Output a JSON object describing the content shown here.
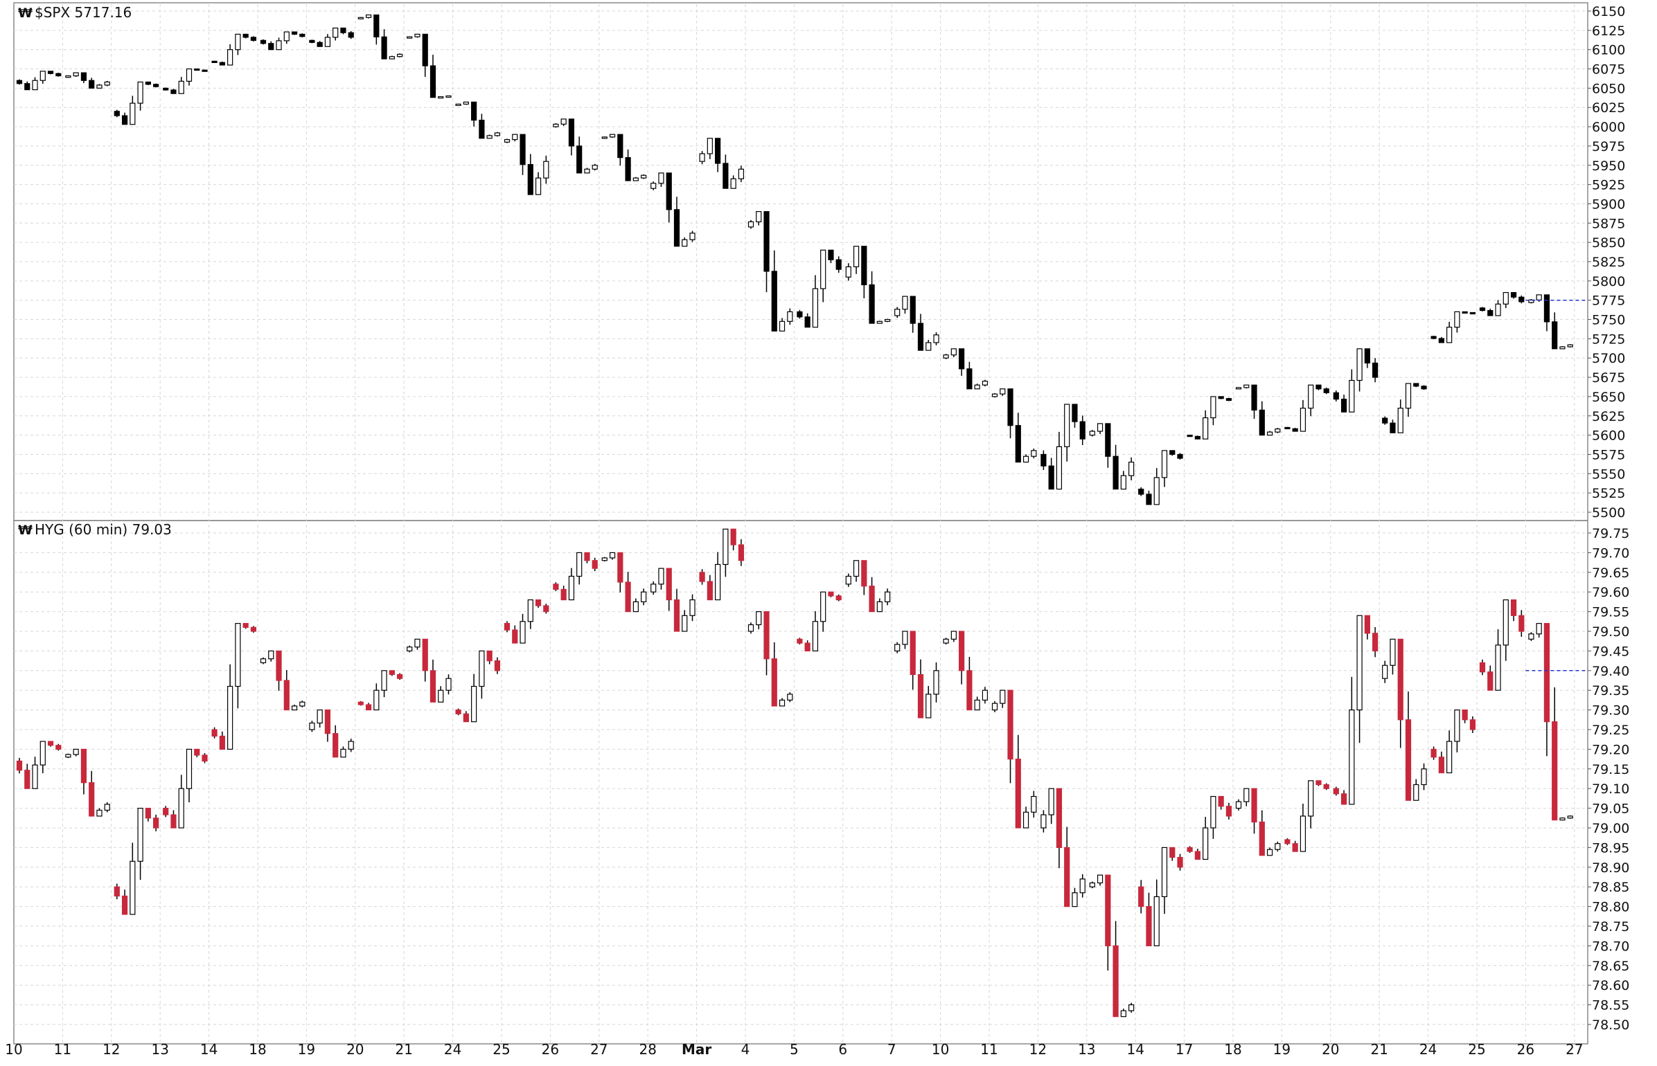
{
  "chart_data": [
    {
      "type": "candlestick",
      "symbol_icon": "chart-logo-icon",
      "title": "$SPX 5717.16",
      "last_value": 5717.16,
      "ylim": [
        5500,
        6150
      ],
      "y_ticks": [
        6150,
        6125,
        6100,
        6075,
        6050,
        6025,
        6000,
        5975,
        5950,
        5925,
        5900,
        5875,
        5850,
        5825,
        5800,
        5775,
        5750,
        5725,
        5700,
        5675,
        5650,
        5625,
        5600,
        5575,
        5550,
        5525,
        5500
      ],
      "up_color": "#ffffff",
      "down_color": "#000000",
      "wick_color": "#000000",
      "ref_line": {
        "value": 5775,
        "color": "#2233cc",
        "style": "dashed"
      },
      "grid": true,
      "days": [
        {
          "label": "10",
          "o": 6060,
          "h": 6072,
          "l": 6048,
          "c": 6066
        },
        {
          "label": "11",
          "o": 6064,
          "h": 6070,
          "l": 6050,
          "c": 6058
        },
        {
          "label": "12",
          "o": 6020,
          "h": 6058,
          "l": 6003,
          "c": 6052
        },
        {
          "label": "13",
          "o": 6050,
          "h": 6075,
          "l": 6043,
          "c": 6072
        },
        {
          "label": "14",
          "o": 6085,
          "h": 6120,
          "l": 6080,
          "c": 6112
        },
        {
          "label": "18",
          "o": 6112,
          "h": 6123,
          "l": 6100,
          "c": 6117
        },
        {
          "label": "19",
          "o": 6112,
          "h": 6128,
          "l": 6104,
          "c": 6116
        },
        {
          "label": "20",
          "o": 6140,
          "h": 6145,
          "l": 6088,
          "c": 6094
        },
        {
          "label": "21",
          "o": 6115,
          "h": 6120,
          "l": 6038,
          "c": 6040
        },
        {
          "label": "24",
          "o": 6028,
          "h": 6032,
          "l": 5985,
          "c": 5992
        },
        {
          "label": "25",
          "o": 5980,
          "h": 5990,
          "l": 5912,
          "c": 5955
        },
        {
          "label": "26",
          "o": 6000,
          "h": 6010,
          "l": 5940,
          "c": 5950
        },
        {
          "label": "27",
          "o": 5985,
          "h": 5990,
          "l": 5930,
          "c": 5937
        },
        {
          "label": "28",
          "o": 5920,
          "h": 5940,
          "l": 5845,
          "c": 5862
        },
        {
          "label": "Mar",
          "o": 5955,
          "h": 5985,
          "l": 5920,
          "c": 5945
        },
        {
          "label": "4",
          "o": 5870,
          "h": 5890,
          "l": 5735,
          "c": 5760
        },
        {
          "label": "5",
          "o": 5760,
          "h": 5840,
          "l": 5740,
          "c": 5815
        },
        {
          "label": "6",
          "o": 5805,
          "h": 5845,
          "l": 5745,
          "c": 5750
        },
        {
          "label": "7",
          "o": 5755,
          "h": 5780,
          "l": 5710,
          "c": 5730
        },
        {
          "label": "10",
          "o": 5700,
          "h": 5712,
          "l": 5660,
          "c": 5670
        },
        {
          "label": "11",
          "o": 5650,
          "h": 5660,
          "l": 5565,
          "c": 5580
        },
        {
          "label": "12",
          "o": 5575,
          "h": 5640,
          "l": 5530,
          "c": 5595
        },
        {
          "label": "13",
          "o": 5600,
          "h": 5615,
          "l": 5530,
          "c": 5565
        },
        {
          "label": "14",
          "o": 5530,
          "h": 5580,
          "l": 5510,
          "c": 5570
        },
        {
          "label": "17",
          "o": 5600,
          "h": 5650,
          "l": 5595,
          "c": 5645
        },
        {
          "label": "18",
          "o": 5660,
          "h": 5665,
          "l": 5600,
          "c": 5608
        },
        {
          "label": "19",
          "o": 5610,
          "h": 5665,
          "l": 5605,
          "c": 5655
        },
        {
          "label": "20",
          "o": 5655,
          "h": 5712,
          "l": 5630,
          "c": 5675
        },
        {
          "label": "21",
          "o": 5622,
          "h": 5667,
          "l": 5603,
          "c": 5660
        },
        {
          "label": "24",
          "o": 5728,
          "h": 5760,
          "l": 5720,
          "c": 5758
        },
        {
          "label": "25",
          "o": 5765,
          "h": 5785,
          "l": 5755,
          "c": 5773
        },
        {
          "label": "26",
          "o": 5772,
          "h": 5782,
          "l": 5712,
          "c": 5717.16
        }
      ]
    },
    {
      "type": "candlestick",
      "symbol_icon": "chart-logo-icon",
      "title": "HYG (60 min) 79.03",
      "last_value": 79.03,
      "ylim": [
        78.5,
        79.75
      ],
      "y_ticks": [
        79.75,
        79.7,
        79.65,
        79.6,
        79.55,
        79.5,
        79.45,
        79.4,
        79.35,
        79.3,
        79.25,
        79.2,
        79.15,
        79.1,
        79.05,
        79.0,
        78.95,
        78.9,
        78.85,
        78.8,
        78.75,
        78.7,
        78.65,
        78.6,
        78.55,
        78.5
      ],
      "up_color": "#ffffff",
      "down_color": "#c8283c",
      "wick_color": "#000000",
      "ref_line": {
        "value": 79.4,
        "color": "#2233cc",
        "style": "dashed"
      },
      "grid": true,
      "days": [
        {
          "label": "10",
          "o": 79.17,
          "h": 79.22,
          "l": 79.1,
          "c": 79.2
        },
        {
          "label": "11",
          "o": 79.18,
          "h": 79.2,
          "l": 79.03,
          "c": 79.06
        },
        {
          "label": "12",
          "o": 78.85,
          "h": 79.05,
          "l": 78.78,
          "c": 79.0
        },
        {
          "label": "13",
          "o": 79.05,
          "h": 79.2,
          "l": 79.0,
          "c": 79.17
        },
        {
          "label": "14",
          "o": 79.25,
          "h": 79.52,
          "l": 79.2,
          "c": 79.5
        },
        {
          "label": "18",
          "o": 79.42,
          "h": 79.45,
          "l": 79.3,
          "c": 79.32
        },
        {
          "label": "19",
          "o": 79.25,
          "h": 79.3,
          "l": 79.18,
          "c": 79.22
        },
        {
          "label": "20",
          "o": 79.32,
          "h": 79.4,
          "l": 79.3,
          "c": 79.38
        },
        {
          "label": "21",
          "o": 79.45,
          "h": 79.48,
          "l": 79.32,
          "c": 79.38
        },
        {
          "label": "24",
          "o": 79.3,
          "h": 79.45,
          "l": 79.27,
          "c": 79.4
        },
        {
          "label": "25",
          "o": 79.52,
          "h": 79.58,
          "l": 79.47,
          "c": 79.55
        },
        {
          "label": "26",
          "o": 79.62,
          "h": 79.7,
          "l": 79.58,
          "c": 79.66
        },
        {
          "label": "27",
          "o": 79.68,
          "h": 79.7,
          "l": 79.55,
          "c": 79.6
        },
        {
          "label": "28",
          "o": 79.6,
          "h": 79.66,
          "l": 79.5,
          "c": 79.58
        },
        {
          "label": "Mar",
          "o": 79.65,
          "h": 79.76,
          "l": 79.58,
          "c": 79.68
        },
        {
          "label": "4",
          "o": 79.5,
          "h": 79.55,
          "l": 79.31,
          "c": 79.34
        },
        {
          "label": "5",
          "o": 79.48,
          "h": 79.6,
          "l": 79.45,
          "c": 79.58
        },
        {
          "label": "6",
          "o": 79.62,
          "h": 79.68,
          "l": 79.55,
          "c": 79.6
        },
        {
          "label": "7",
          "o": 79.45,
          "h": 79.5,
          "l": 79.28,
          "c": 79.4
        },
        {
          "label": "10",
          "o": 79.47,
          "h": 79.5,
          "l": 79.3,
          "c": 79.35
        },
        {
          "label": "11",
          "o": 79.3,
          "h": 79.35,
          "l": 79.0,
          "c": 79.08
        },
        {
          "label": "12",
          "o": 79.0,
          "h": 79.1,
          "l": 78.8,
          "c": 78.87
        },
        {
          "label": "13",
          "o": 78.85,
          "h": 78.88,
          "l": 78.52,
          "c": 78.55
        },
        {
          "label": "14",
          "o": 78.85,
          "h": 78.95,
          "l": 78.7,
          "c": 78.9
        },
        {
          "label": "17",
          "o": 78.95,
          "h": 79.08,
          "l": 78.92,
          "c": 79.03
        },
        {
          "label": "18",
          "o": 79.05,
          "h": 79.1,
          "l": 78.93,
          "c": 78.96
        },
        {
          "label": "19",
          "o": 78.97,
          "h": 79.12,
          "l": 78.94,
          "c": 79.1
        },
        {
          "label": "20",
          "o": 79.1,
          "h": 79.54,
          "l": 79.06,
          "c": 79.45
        },
        {
          "label": "21",
          "o": 79.38,
          "h": 79.48,
          "l": 79.07,
          "c": 79.15
        },
        {
          "label": "24",
          "o": 79.2,
          "h": 79.3,
          "l": 79.14,
          "c": 79.25
        },
        {
          "label": "25",
          "o": 79.42,
          "h": 79.58,
          "l": 79.35,
          "c": 79.5
        },
        {
          "label": "26",
          "o": 79.48,
          "h": 79.52,
          "l": 79.02,
          "c": 79.03
        }
      ]
    }
  ],
  "x_axis": {
    "labels": [
      "10",
      "11",
      "12",
      "13",
      "14",
      "18",
      "19",
      "20",
      "21",
      "24",
      "25",
      "26",
      "27",
      "28",
      "Mar",
      "4",
      "5",
      "6",
      "7",
      "10",
      "11",
      "12",
      "13",
      "14",
      "17",
      "18",
      "19",
      "20",
      "21",
      "24",
      "25",
      "26",
      "27"
    ],
    "bold_labels": [
      "Mar"
    ]
  }
}
